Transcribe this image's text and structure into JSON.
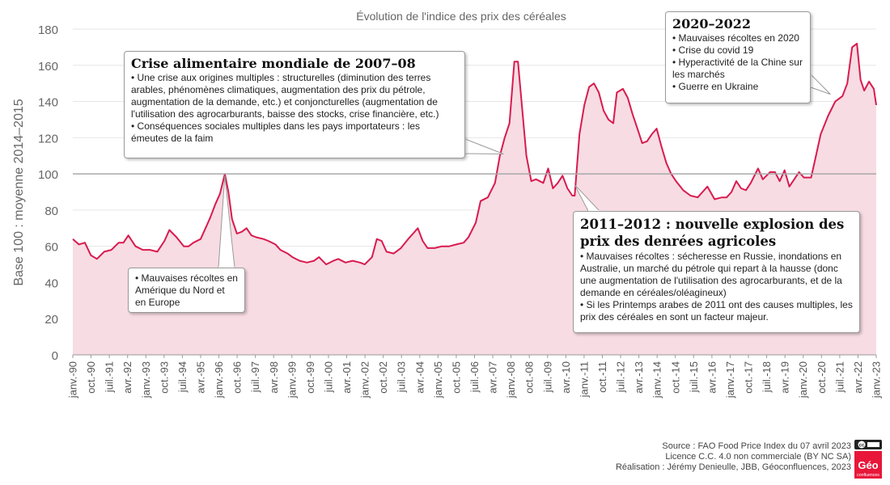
{
  "chart_data": {
    "type": "area",
    "title": "Évolution de l'indice des prix des céréales",
    "ylabel": "Base 100 : moyenne 2014–2015",
    "xlabel": "",
    "ylim": [
      0,
      180
    ],
    "yticks": [
      0,
      20,
      40,
      60,
      80,
      100,
      120,
      140,
      160,
      180
    ],
    "reference_line": 100,
    "grid": true,
    "line_color": "#d81b4f",
    "fill_color": "#f7dce3",
    "x_tick_labels": [
      "janv.-90",
      "oct.-90",
      "juil.-91",
      "avr.-92",
      "janv.-93",
      "oct.-93",
      "juil.-94",
      "avr.-95",
      "janv.-96",
      "oct.-96",
      "juil.-97",
      "avr.-98",
      "janv.-99",
      "oct.-99",
      "juil.-00",
      "avr.-01",
      "janv.-02",
      "oct.-02",
      "juil.-03",
      "avr.-04",
      "janv.-05",
      "oct.-05",
      "juil.-06",
      "avr.-07",
      "janv.-08",
      "oct.-08",
      "juil.-09",
      "avr.-10",
      "janv.-11",
      "oct.-11",
      "juil.-12",
      "avr.-13",
      "janv.-14",
      "oct.-14",
      "juil.-15",
      "avr.-16",
      "janv.-17",
      "oct.-17",
      "juil.-18",
      "avr.-19",
      "janv.-20",
      "oct.-20",
      "juil.-21",
      "avr.-22",
      "janv.-23"
    ],
    "series": [
      {
        "name": "Indice des prix des céréales",
        "points": [
          [
            1990.0,
            64
          ],
          [
            1990.25,
            61
          ],
          [
            1990.5,
            62
          ],
          [
            1990.75,
            55
          ],
          [
            1991.0,
            53
          ],
          [
            1991.3,
            57
          ],
          [
            1991.6,
            58
          ],
          [
            1991.9,
            62
          ],
          [
            1992.1,
            62
          ],
          [
            1992.3,
            66
          ],
          [
            1992.6,
            60
          ],
          [
            1992.9,
            58
          ],
          [
            1993.2,
            58
          ],
          [
            1993.5,
            57
          ],
          [
            1993.8,
            63
          ],
          [
            1994.0,
            69
          ],
          [
            1994.3,
            65
          ],
          [
            1994.6,
            60
          ],
          [
            1994.8,
            60
          ],
          [
            1995.0,
            62
          ],
          [
            1995.3,
            64
          ],
          [
            1995.5,
            70
          ],
          [
            1995.7,
            76
          ],
          [
            1995.9,
            83
          ],
          [
            1996.1,
            89
          ],
          [
            1996.3,
            100
          ],
          [
            1996.45,
            90
          ],
          [
            1996.6,
            75
          ],
          [
            1996.8,
            67
          ],
          [
            1997.0,
            68
          ],
          [
            1997.2,
            70
          ],
          [
            1997.4,
            66
          ],
          [
            1997.6,
            65
          ],
          [
            1997.9,
            64
          ],
          [
            1998.1,
            63
          ],
          [
            1998.4,
            61
          ],
          [
            1998.6,
            58
          ],
          [
            1998.9,
            56
          ],
          [
            1999.1,
            54
          ],
          [
            1999.4,
            52
          ],
          [
            1999.7,
            51
          ],
          [
            2000.0,
            52
          ],
          [
            2000.2,
            54
          ],
          [
            2000.5,
            50
          ],
          [
            2000.8,
            52
          ],
          [
            2001.0,
            53
          ],
          [
            2001.3,
            51
          ],
          [
            2001.6,
            52
          ],
          [
            2001.9,
            51
          ],
          [
            2002.1,
            50
          ],
          [
            2002.4,
            54
          ],
          [
            2002.6,
            64
          ],
          [
            2002.8,
            63
          ],
          [
            2003.0,
            57
          ],
          [
            2003.3,
            56
          ],
          [
            2003.6,
            59
          ],
          [
            2003.9,
            64
          ],
          [
            2004.1,
            67
          ],
          [
            2004.3,
            70
          ],
          [
            2004.5,
            63
          ],
          [
            2004.7,
            59
          ],
          [
            2005.0,
            59
          ],
          [
            2005.3,
            60
          ],
          [
            2005.6,
            60
          ],
          [
            2005.9,
            61
          ],
          [
            2006.2,
            62
          ],
          [
            2006.4,
            65
          ],
          [
            2006.7,
            73
          ],
          [
            2006.9,
            85
          ],
          [
            2007.2,
            87
          ],
          [
            2007.5,
            95
          ],
          [
            2007.7,
            110
          ],
          [
            2007.9,
            120
          ],
          [
            2008.1,
            128
          ],
          [
            2008.3,
            162
          ],
          [
            2008.45,
            162
          ],
          [
            2008.6,
            140
          ],
          [
            2008.8,
            110
          ],
          [
            2009.0,
            96
          ],
          [
            2009.2,
            97
          ],
          [
            2009.5,
            95
          ],
          [
            2009.7,
            103
          ],
          [
            2009.9,
            92
          ],
          [
            2010.1,
            95
          ],
          [
            2010.3,
            99
          ],
          [
            2010.5,
            92
          ],
          [
            2010.7,
            88
          ],
          [
            2010.8,
            88
          ],
          [
            2011.0,
            122
          ],
          [
            2011.2,
            138
          ],
          [
            2011.4,
            148
          ],
          [
            2011.6,
            150
          ],
          [
            2011.8,
            145
          ],
          [
            2012.0,
            135
          ],
          [
            2012.2,
            130
          ],
          [
            2012.4,
            128
          ],
          [
            2012.55,
            145
          ],
          [
            2012.8,
            147
          ],
          [
            2013.0,
            142
          ],
          [
            2013.2,
            133
          ],
          [
            2013.4,
            125
          ],
          [
            2013.6,
            117
          ],
          [
            2013.8,
            118
          ],
          [
            2014.0,
            122
          ],
          [
            2014.2,
            125
          ],
          [
            2014.4,
            115
          ],
          [
            2014.6,
            106
          ],
          [
            2014.8,
            100
          ],
          [
            2015.0,
            96
          ],
          [
            2015.3,
            91
          ],
          [
            2015.6,
            88
          ],
          [
            2015.9,
            87
          ],
          [
            2016.1,
            90
          ],
          [
            2016.3,
            93
          ],
          [
            2016.6,
            86
          ],
          [
            2016.9,
            87
          ],
          [
            2017.1,
            87
          ],
          [
            2017.3,
            90
          ],
          [
            2017.5,
            96
          ],
          [
            2017.7,
            92
          ],
          [
            2017.9,
            91
          ],
          [
            2018.1,
            95
          ],
          [
            2018.4,
            103
          ],
          [
            2018.6,
            97
          ],
          [
            2018.9,
            101
          ],
          [
            2019.1,
            101
          ],
          [
            2019.3,
            96
          ],
          [
            2019.5,
            102
          ],
          [
            2019.7,
            93
          ],
          [
            2019.9,
            97
          ],
          [
            2020.1,
            101
          ],
          [
            2020.3,
            98
          ],
          [
            2020.6,
            98
          ],
          [
            2020.8,
            110
          ],
          [
            2021.0,
            122
          ],
          [
            2021.3,
            132
          ],
          [
            2021.6,
            140
          ],
          [
            2021.9,
            143
          ],
          [
            2022.1,
            150
          ],
          [
            2022.3,
            170
          ],
          [
            2022.5,
            172
          ],
          [
            2022.65,
            152
          ],
          [
            2022.8,
            146
          ],
          [
            2023.0,
            151
          ],
          [
            2023.2,
            147
          ],
          [
            2023.3,
            138
          ]
        ]
      }
    ]
  },
  "annotations": {
    "crise2008": {
      "title": "Crise alimentaire mondiale de 2007–08",
      "lines": [
        "Une crise aux origines multiples : structurelles (diminution des terres arables, phénomènes climatiques, augmentation des prix du pétrole, augmentation de la demande, etc.) et conjoncturelles (augmentation de l'utilisation des agrocarburants, baisse des stocks, crise financière, etc.)",
        "Conséquences sociales multiples dans les pays importateurs : les émeutes de la faim"
      ]
    },
    "recoltes1996": {
      "lines": [
        "Mauvaises récoltes en Amérique du Nord et en Europe"
      ]
    },
    "explosion2011": {
      "title": "2011–2012 : nouvelle explosion des prix des denrées agricoles",
      "lines": [
        "Mauvaises récoltes : sécheresse en Russie, inondations en Australie, un marché du pétrole qui repart à la hausse (donc une augmentation de l'utilisation des agrocarburants, et de la demande en céréales/oléagineux)",
        "Si les Printemps arabes de 2011 ont des causes multiples, les prix des céréales en sont un facteur majeur."
      ]
    },
    "crise2020": {
      "title": "2020–2022",
      "lines": [
        "Mauvaises récoltes en 2020",
        "Crise du covid 19",
        "Hyperactivité de la Chine sur les marchés",
        "Guerre en Ukraine"
      ]
    }
  },
  "footer": {
    "source": "Source : FAO Food Price Index du 07 avril 2023",
    "license": "Licence C.C. 4.0 non commerciale (BY NC SA)",
    "credits": "Réalisation : Jérémy Denieulle, JBB, Géoconfluences, 2023"
  },
  "logo": {
    "cc_icon": "creative-commons-icon",
    "text": "Géo",
    "subtext": "confluences"
  }
}
